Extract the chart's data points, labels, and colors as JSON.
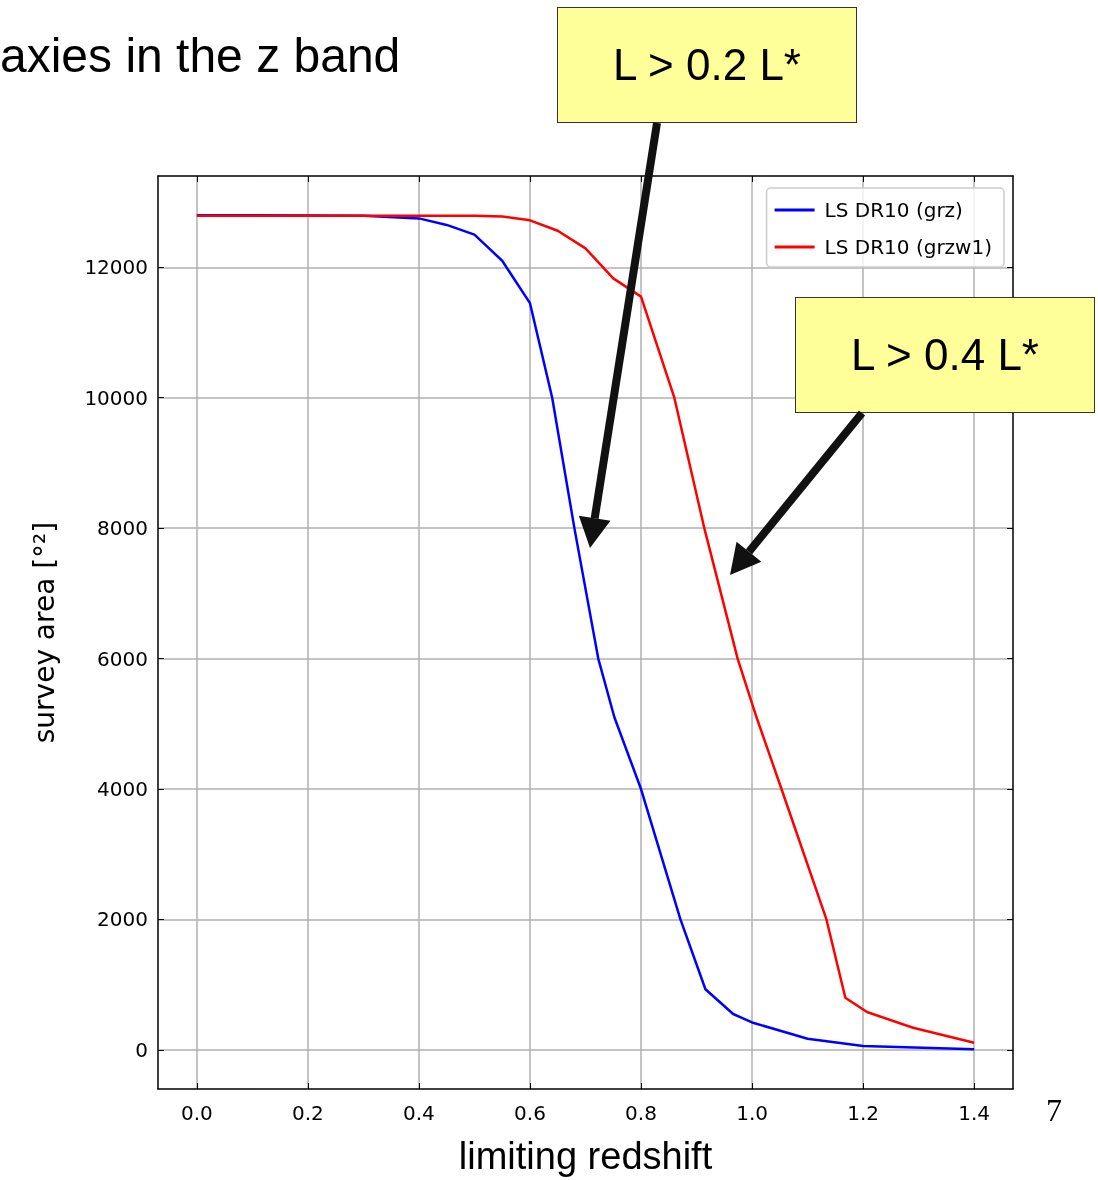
{
  "chart_data": {
    "type": "line",
    "title": "axies in the z band",
    "xlabel": "limiting redshift",
    "ylabel": "survey area [°²]",
    "xlim": [
      -0.07,
      1.47
    ],
    "ylim": [
      -600,
      13400
    ],
    "xticks": [
      {
        "value": 0,
        "label": "0.0"
      },
      {
        "value": 0.2,
        "label": "0.2"
      },
      {
        "value": 0.4,
        "label": "0.4"
      },
      {
        "value": 0.6,
        "label": "0.6"
      },
      {
        "value": 0.8,
        "label": "0.8"
      },
      {
        "value": 1.0,
        "label": "1.0"
      },
      {
        "value": 1.2,
        "label": "1.2"
      },
      {
        "value": 1.4,
        "label": "1.4"
      }
    ],
    "yticks": [
      0,
      2000,
      4000,
      6000,
      8000,
      10000,
      12000
    ],
    "grid": true,
    "legend": "top right",
    "marker": "none",
    "line_style": "solid",
    "series": [
      {
        "name": "LS DR10 (grz)",
        "color": "#0000ff",
        "x": [
          0,
          0.3,
          0.4,
          0.45,
          0.5,
          0.55,
          0.6,
          0.64,
          0.68,
          0.723,
          0.752,
          0.8,
          0.871,
          0.916,
          0.966,
          1.0,
          1.1,
          1.2,
          1.4
        ],
        "values": [
          12800,
          12790,
          12750,
          12650,
          12500,
          12100,
          11450,
          10000,
          8000,
          6000,
          5100,
          4000,
          2000,
          930,
          550,
          420,
          170,
          60,
          10
        ]
      },
      {
        "name": "LS DR10 (grzw1)",
        "color": "#ff0000",
        "x": [
          0,
          0.5,
          0.55,
          0.6,
          0.65,
          0.7,
          0.75,
          0.8,
          0.86,
          0.914,
          0.974,
          1.008,
          1.053,
          1.134,
          1.168,
          1.207,
          1.29,
          1.4
        ],
        "values": [
          12790,
          12790,
          12780,
          12720,
          12560,
          12290,
          11830,
          11550,
          10000,
          8000,
          6000,
          5100,
          4000,
          2000,
          800,
          580,
          340,
          110
        ]
      }
    ],
    "annotations": [
      "L > 0.2 L*",
      "L > 0.4 L*",
      "7"
    ]
  }
}
